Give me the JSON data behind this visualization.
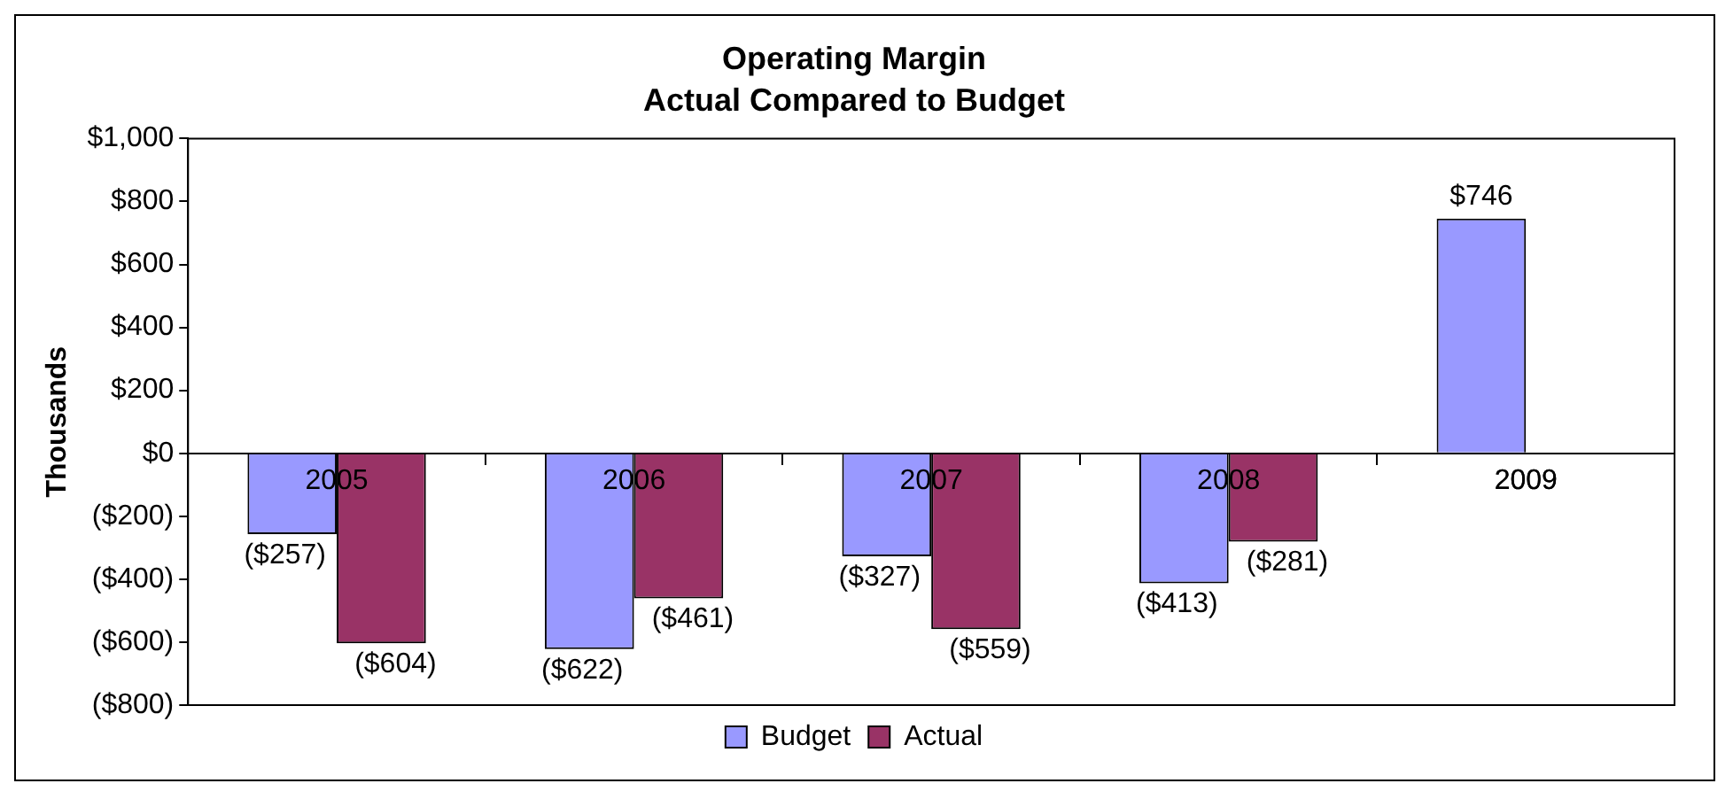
{
  "chart_data": {
    "type": "bar",
    "title": "Operating Margin",
    "subtitle": "Actual Compared to Budget",
    "ylabel": "Thousands",
    "categories": [
      "2005",
      "2006",
      "2007",
      "2008",
      "2009"
    ],
    "series": [
      {
        "name": "Budget",
        "color": "#9999ff",
        "values": [
          -257,
          -622,
          -327,
          -413,
          746
        ],
        "value_labels": [
          "($257)",
          "($622)",
          "($327)",
          "($413)",
          "$746"
        ]
      },
      {
        "name": "Actual",
        "color": "#993366",
        "values": [
          -604,
          -461,
          -559,
          -281,
          null
        ],
        "value_labels": [
          "($604)",
          "($461)",
          "($559)",
          "($281)",
          null
        ]
      }
    ],
    "ylim": [
      -800,
      1000
    ],
    "yticks": [
      {
        "value": 1000,
        "label": "$1,000"
      },
      {
        "value": 800,
        "label": "$800"
      },
      {
        "value": 600,
        "label": "$600"
      },
      {
        "value": 400,
        "label": "$400"
      },
      {
        "value": 200,
        "label": "$200"
      },
      {
        "value": 0,
        "label": "$0"
      },
      {
        "value": -200,
        "label": "($200)"
      },
      {
        "value": -400,
        "label": "($400)"
      },
      {
        "value": -600,
        "label": "($600)"
      },
      {
        "value": -800,
        "label": "($800)"
      }
    ],
    "grid": false,
    "legend": "bottom"
  }
}
